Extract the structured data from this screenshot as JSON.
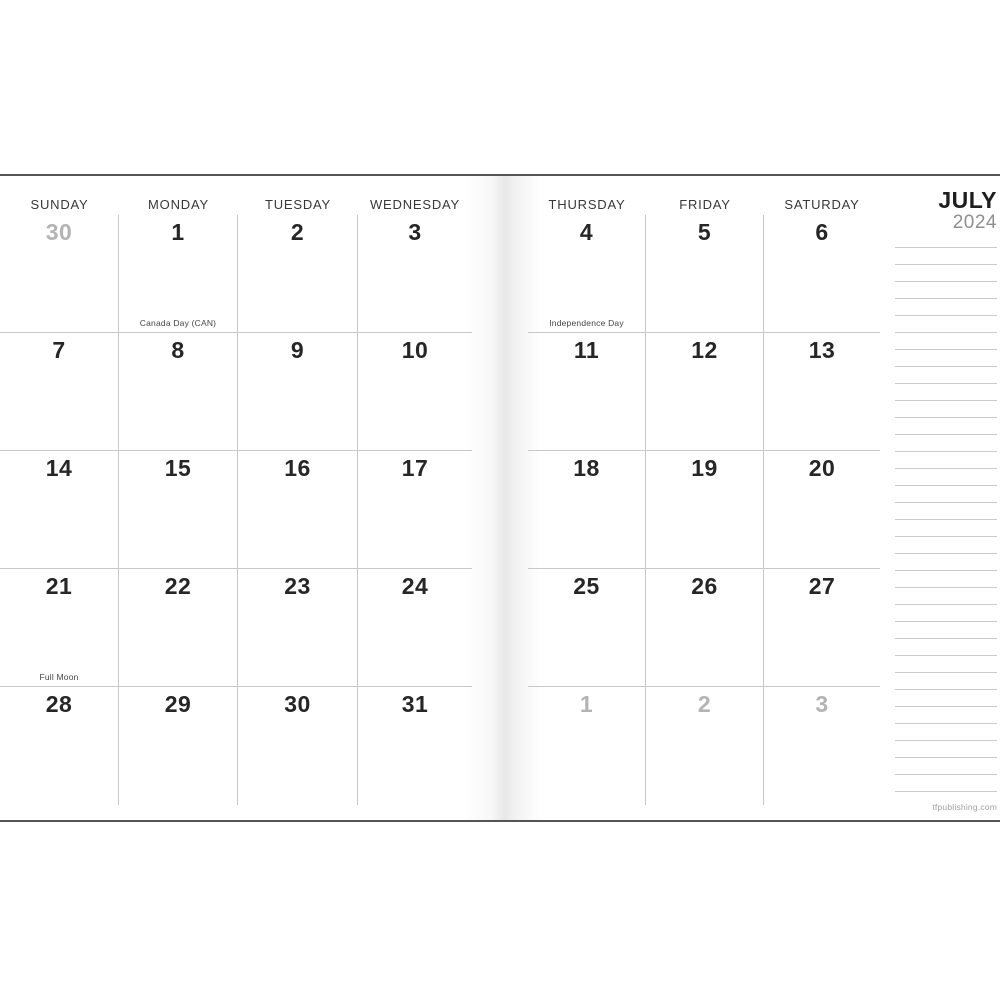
{
  "month_header": {
    "month": "JULY",
    "year": "2024"
  },
  "left_page": {
    "day_headers": [
      "SUNDAY",
      "MONDAY",
      "TUESDAY",
      "WEDNESDAY"
    ],
    "weeks": [
      [
        {
          "d": "30",
          "muted": true
        },
        {
          "d": "1",
          "note": "Canada Day (CAN)"
        },
        {
          "d": "2"
        },
        {
          "d": "3"
        }
      ],
      [
        {
          "d": "7"
        },
        {
          "d": "8"
        },
        {
          "d": "9"
        },
        {
          "d": "10"
        }
      ],
      [
        {
          "d": "14"
        },
        {
          "d": "15"
        },
        {
          "d": "16"
        },
        {
          "d": "17"
        }
      ],
      [
        {
          "d": "21",
          "note": "Full Moon"
        },
        {
          "d": "22"
        },
        {
          "d": "23"
        },
        {
          "d": "24"
        }
      ],
      [
        {
          "d": "28"
        },
        {
          "d": "29"
        },
        {
          "d": "30"
        },
        {
          "d": "31"
        }
      ]
    ]
  },
  "right_page": {
    "day_headers": [
      "THURSDAY",
      "FRIDAY",
      "SATURDAY"
    ],
    "weeks": [
      [
        {
          "d": "4",
          "note": "Independence Day"
        },
        {
          "d": "5"
        },
        {
          "d": "6"
        }
      ],
      [
        {
          "d": "11"
        },
        {
          "d": "12"
        },
        {
          "d": "13"
        }
      ],
      [
        {
          "d": "18"
        },
        {
          "d": "19"
        },
        {
          "d": "20"
        }
      ],
      [
        {
          "d": "25"
        },
        {
          "d": "26"
        },
        {
          "d": "27"
        }
      ],
      [
        {
          "d": "1",
          "muted": true
        },
        {
          "d": "2",
          "muted": true
        },
        {
          "d": "3",
          "muted": true
        }
      ]
    ]
  },
  "footer": {
    "website": "tfpublishing.com"
  },
  "colors": {
    "date_text": "#262626",
    "muted_date_text": "#b4b4b4",
    "day_header_text": "#383838",
    "grid_line": "#c8c8c8",
    "page_edge_line": "#555555",
    "month_text": "#1e1e1e",
    "year_text": "#8f8f8f",
    "notes_line": "#cacaca",
    "note_text": "#454545",
    "site_text": "#a0a0a0"
  }
}
